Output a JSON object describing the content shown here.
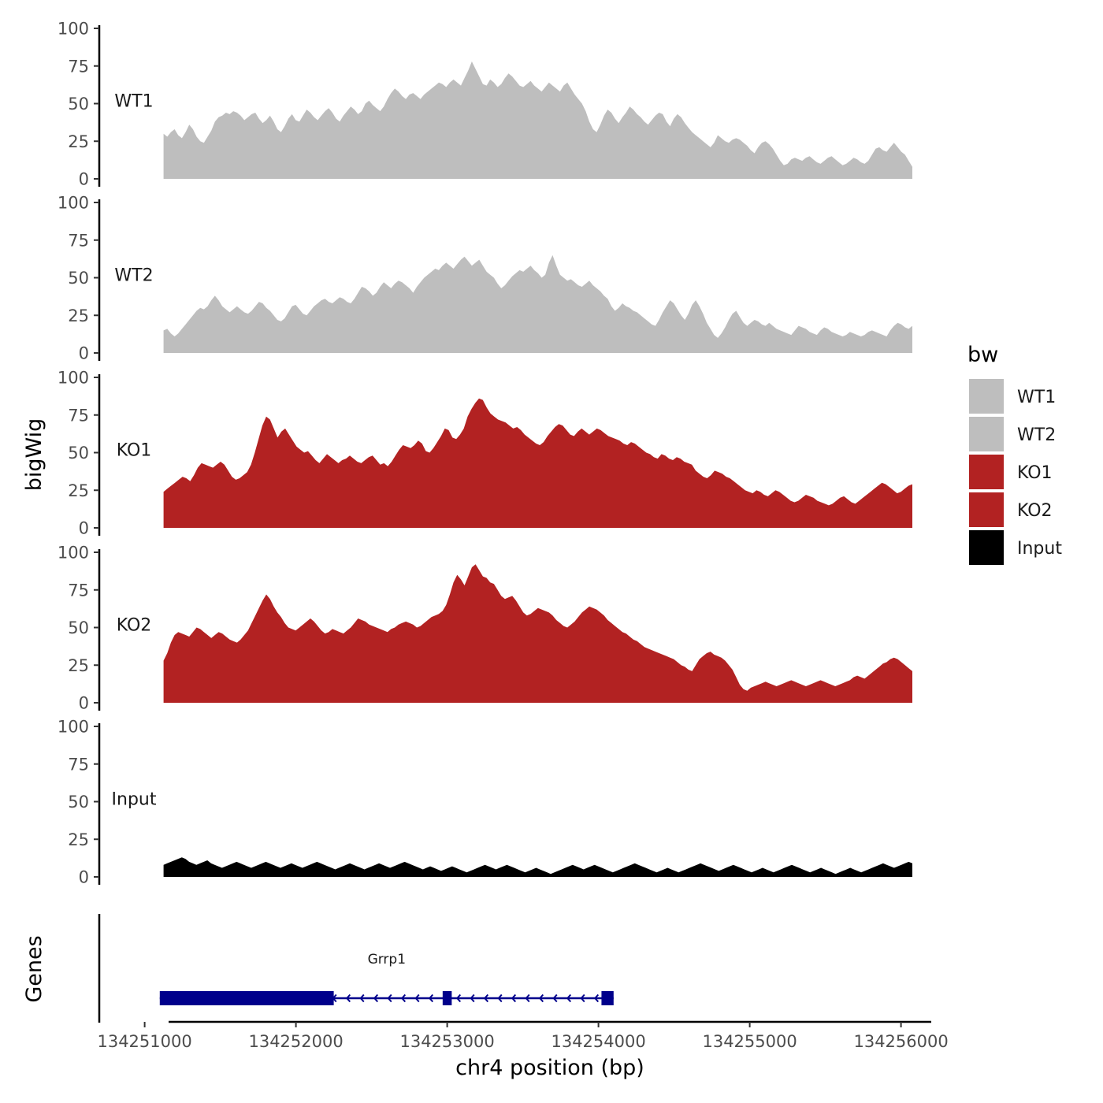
{
  "chart_data": {
    "type": "area",
    "ylabel": "bigWig",
    "genes_label": "Genes",
    "xlabel": "chr4 position (bp)",
    "xlim": [
      134250700,
      134256200
    ],
    "x_ticks": [
      {
        "value": 134251000,
        "label": "134251000"
      },
      {
        "value": 134252000,
        "label": "134252000"
      },
      {
        "value": 134253000,
        "label": "134253000"
      },
      {
        "value": 134254000,
        "label": "134254000"
      },
      {
        "value": 134255000,
        "label": "134255000"
      },
      {
        "value": 134256000,
        "label": "134256000"
      }
    ],
    "ylim": [
      0,
      100
    ],
    "y_ticks": [
      {
        "value": 0,
        "label": "0"
      },
      {
        "value": 25,
        "label": "25"
      },
      {
        "value": 50,
        "label": "50"
      },
      {
        "value": 75,
        "label": "75"
      },
      {
        "value": 100,
        "label": "100"
      }
    ],
    "x_start": 134251125,
    "x_end": 134256075,
    "legend": {
      "title": "bw",
      "placement": "right"
    },
    "series": [
      {
        "name": "WT1",
        "color": "#bebebe",
        "values": [
          30,
          28,
          31,
          33,
          29,
          27,
          31,
          36,
          33,
          28,
          25,
          24,
          28,
          32,
          38,
          41,
          42,
          44,
          43,
          45,
          44,
          42,
          39,
          41,
          43,
          44,
          40,
          37,
          39,
          42,
          38,
          33,
          31,
          35,
          40,
          43,
          39,
          38,
          42,
          46,
          44,
          41,
          39,
          42,
          45,
          47,
          44,
          40,
          38,
          42,
          45,
          48,
          46,
          43,
          45,
          50,
          52,
          49,
          47,
          45,
          48,
          53,
          57,
          60,
          58,
          55,
          53,
          56,
          57,
          55,
          53,
          56,
          58,
          60,
          62,
          64,
          63,
          61,
          64,
          66,
          64,
          62,
          67,
          72,
          78,
          73,
          68,
          63,
          62,
          66,
          64,
          61,
          63,
          67,
          70,
          68,
          65,
          62,
          61,
          63,
          65,
          62,
          60,
          58,
          61,
          64,
          62,
          60,
          58,
          62,
          64,
          60,
          56,
          53,
          50,
          45,
          38,
          33,
          31,
          36,
          42,
          46,
          44,
          40,
          37,
          41,
          44,
          48,
          46,
          43,
          41,
          38,
          36,
          39,
          42,
          44,
          43,
          38,
          35,
          40,
          43,
          41,
          37,
          34,
          31,
          29,
          27,
          25,
          23,
          21,
          24,
          29,
          27,
          25,
          24,
          26,
          27,
          26,
          24,
          22,
          19,
          17,
          21,
          24,
          25,
          23,
          20,
          16,
          12,
          9,
          10,
          13,
          14,
          13,
          12,
          14,
          15,
          13,
          11,
          10,
          12,
          14,
          15,
          13,
          11,
          9,
          10,
          12,
          14,
          13,
          11,
          10,
          12,
          16,
          20,
          21,
          19,
          18,
          21,
          24,
          21,
          18,
          16,
          12,
          8
        ]
      },
      {
        "name": "WT2",
        "color": "#bebebe",
        "values": [
          15,
          16,
          13,
          11,
          13,
          16,
          19,
          22,
          25,
          28,
          30,
          29,
          31,
          35,
          38,
          35,
          31,
          29,
          27,
          29,
          31,
          29,
          27,
          26,
          28,
          31,
          34,
          33,
          30,
          28,
          25,
          22,
          21,
          23,
          27,
          31,
          32,
          29,
          26,
          25,
          28,
          31,
          33,
          35,
          36,
          34,
          33,
          35,
          37,
          36,
          34,
          33,
          36,
          40,
          44,
          43,
          41,
          38,
          40,
          44,
          47,
          45,
          43,
          46,
          48,
          47,
          45,
          43,
          40,
          44,
          47,
          50,
          52,
          54,
          56,
          55,
          58,
          60,
          58,
          56,
          59,
          62,
          64,
          61,
          58,
          60,
          62,
          58,
          54,
          52,
          50,
          46,
          43,
          45,
          48,
          51,
          53,
          55,
          54,
          56,
          58,
          55,
          53,
          50,
          52,
          60,
          65,
          58,
          52,
          50,
          48,
          49,
          47,
          45,
          44,
          46,
          48,
          45,
          43,
          41,
          38,
          36,
          31,
          28,
          30,
          33,
          31,
          30,
          28,
          27,
          25,
          23,
          21,
          19,
          18,
          22,
          27,
          31,
          35,
          33,
          29,
          25,
          22,
          26,
          32,
          35,
          31,
          26,
          20,
          16,
          12,
          10,
          13,
          17,
          22,
          26,
          28,
          24,
          20,
          18,
          20,
          22,
          21,
          19,
          18,
          20,
          18,
          16,
          15,
          14,
          13,
          12,
          15,
          18,
          17,
          16,
          14,
          13,
          12,
          15,
          17,
          16,
          14,
          13,
          12,
          11,
          12,
          14,
          13,
          12,
          11,
          12,
          14,
          15,
          14,
          13,
          12,
          11,
          15,
          18,
          20,
          19,
          17,
          16,
          18
        ]
      },
      {
        "name": "KO1",
        "color": "#b22222",
        "values": [
          24,
          26,
          28,
          30,
          32,
          34,
          33,
          31,
          35,
          40,
          43,
          42,
          41,
          40,
          42,
          44,
          42,
          38,
          34,
          32,
          33,
          35,
          37,
          42,
          50,
          59,
          68,
          74,
          72,
          66,
          60,
          64,
          66,
          62,
          58,
          54,
          52,
          50,
          51,
          48,
          45,
          43,
          46,
          49,
          47,
          45,
          43,
          45,
          46,
          48,
          46,
          44,
          43,
          45,
          47,
          48,
          45,
          42,
          43,
          41,
          44,
          48,
          52,
          55,
          54,
          53,
          55,
          58,
          56,
          51,
          50,
          53,
          57,
          61,
          66,
          65,
          60,
          59,
          62,
          66,
          74,
          79,
          83,
          86,
          85,
          80,
          76,
          74,
          72,
          71,
          70,
          68,
          66,
          67,
          65,
          62,
          60,
          58,
          56,
          55,
          57,
          61,
          64,
          67,
          69,
          68,
          65,
          62,
          61,
          64,
          66,
          64,
          62,
          64,
          66,
          65,
          63,
          61,
          60,
          59,
          58,
          56,
          55,
          57,
          56,
          54,
          52,
          50,
          49,
          47,
          46,
          49,
          48,
          46,
          45,
          47,
          46,
          44,
          43,
          42,
          38,
          36,
          34,
          33,
          35,
          38,
          37,
          36,
          34,
          33,
          31,
          29,
          27,
          25,
          24,
          23,
          25,
          24,
          22,
          21,
          23,
          25,
          24,
          22,
          20,
          18,
          17,
          18,
          20,
          22,
          21,
          20,
          18,
          17,
          16,
          15,
          16,
          18,
          20,
          21,
          19,
          17,
          16,
          18,
          20,
          22,
          24,
          26,
          28,
          30,
          29,
          27,
          25,
          23,
          24,
          26,
          28,
          29
        ]
      },
      {
        "name": "KO2",
        "color": "#b22222",
        "values": [
          28,
          33,
          40,
          45,
          47,
          46,
          45,
          44,
          47,
          50,
          49,
          47,
          45,
          43,
          45,
          47,
          46,
          44,
          42,
          41,
          40,
          42,
          45,
          48,
          53,
          58,
          63,
          68,
          72,
          69,
          64,
          60,
          57,
          53,
          50,
          49,
          48,
          50,
          52,
          54,
          56,
          54,
          51,
          48,
          46,
          47,
          49,
          48,
          47,
          46,
          48,
          50,
          53,
          56,
          55,
          54,
          52,
          51,
          50,
          49,
          48,
          47,
          49,
          50,
          52,
          53,
          54,
          53,
          52,
          50,
          51,
          53,
          55,
          57,
          58,
          59,
          61,
          65,
          72,
          80,
          85,
          82,
          78,
          84,
          90,
          92,
          88,
          84,
          83,
          80,
          79,
          75,
          71,
          69,
          70,
          71,
          68,
          64,
          60,
          58,
          59,
          61,
          63,
          62,
          61,
          60,
          58,
          55,
          53,
          51,
          50,
          52,
          54,
          57,
          60,
          62,
          64,
          63,
          62,
          60,
          58,
          55,
          53,
          51,
          49,
          47,
          46,
          44,
          42,
          41,
          39,
          37,
          36,
          35,
          34,
          33,
          32,
          31,
          30,
          29,
          27,
          25,
          24,
          22,
          21,
          25,
          29,
          31,
          33,
          34,
          32,
          31,
          30,
          28,
          25,
          22,
          17,
          12,
          9,
          8,
          10,
          11,
          12,
          13,
          14,
          13,
          12,
          11,
          12,
          13,
          14,
          15,
          14,
          13,
          12,
          11,
          12,
          13,
          14,
          15,
          14,
          13,
          12,
          11,
          12,
          13,
          14,
          15,
          17,
          18,
          17,
          16,
          18,
          20,
          22,
          24,
          26,
          27,
          29,
          30,
          29,
          27,
          25,
          23,
          21
        ]
      },
      {
        "name": "Input",
        "color": "#000000",
        "values": [
          8,
          9,
          10,
          11,
          12,
          13,
          12,
          10,
          9,
          8,
          9,
          10,
          11,
          9,
          8,
          7,
          6,
          7,
          8,
          9,
          10,
          9,
          8,
          7,
          6,
          7,
          8,
          9,
          10,
          9,
          8,
          7,
          6,
          7,
          8,
          9,
          8,
          7,
          6,
          7,
          8,
          9,
          10,
          9,
          8,
          7,
          6,
          5,
          6,
          7,
          8,
          9,
          8,
          7,
          6,
          5,
          6,
          7,
          8,
          9,
          8,
          7,
          6,
          7,
          8,
          9,
          10,
          9,
          8,
          7,
          6,
          5,
          6,
          7,
          6,
          5,
          4,
          5,
          6,
          7,
          6,
          5,
          4,
          3,
          4,
          5,
          6,
          7,
          8,
          7,
          6,
          5,
          6,
          7,
          8,
          7,
          6,
          5,
          4,
          3,
          4,
          5,
          6,
          5,
          4,
          3,
          2,
          3,
          4,
          5,
          6,
          7,
          8,
          7,
          6,
          5,
          6,
          7,
          8,
          7,
          6,
          5,
          4,
          3,
          4,
          5,
          6,
          7,
          8,
          9,
          8,
          7,
          6,
          5,
          4,
          3,
          4,
          5,
          6,
          5,
          4,
          3,
          4,
          5,
          6,
          7,
          8,
          9,
          8,
          7,
          6,
          5,
          4,
          5,
          6,
          7,
          8,
          7,
          6,
          5,
          4,
          3,
          4,
          5,
          6,
          5,
          4,
          3,
          4,
          5,
          6,
          7,
          8,
          7,
          6,
          5,
          4,
          3,
          4,
          5,
          6,
          5,
          4,
          3,
          2,
          3,
          4,
          5,
          6,
          5,
          4,
          3,
          4,
          5,
          6,
          7,
          8,
          9,
          8,
          7,
          6,
          7,
          8,
          9,
          10,
          9
        ]
      }
    ],
    "genes": [
      {
        "name": "Grrp1",
        "color": "#00008b",
        "start": 134251100,
        "end": 134254100,
        "strand": "-",
        "exons": [
          {
            "start": 134251100,
            "end": 134252250,
            "thick": true
          },
          {
            "start": 134252970,
            "end": 134253030,
            "thick": true
          },
          {
            "start": 134254020,
            "end": 134254100,
            "thick": true
          }
        ]
      }
    ]
  }
}
